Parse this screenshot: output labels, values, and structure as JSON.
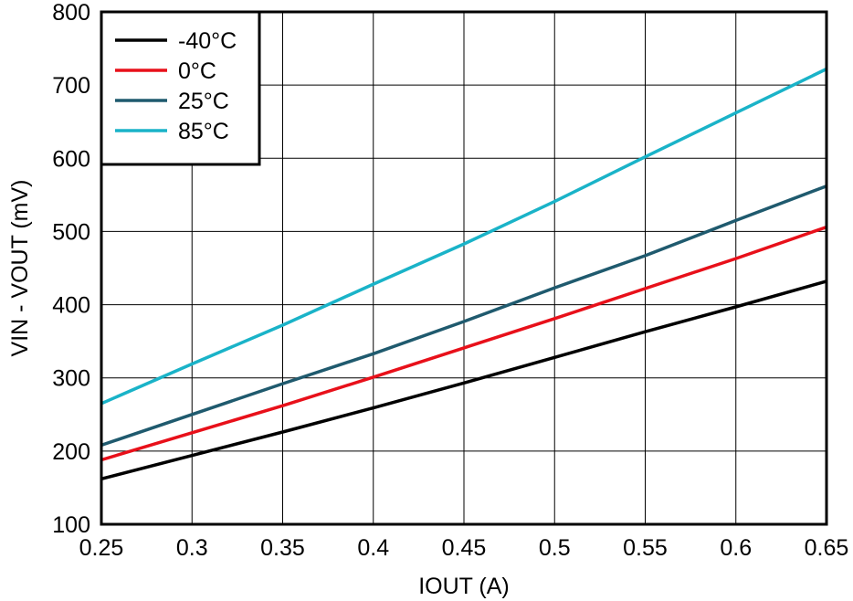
{
  "chart_data": {
    "type": "line",
    "title": "",
    "xlabel": "IOUT (A)",
    "ylabel": "VIN - VOUT (mV)",
    "xlim": [
      0.25,
      0.65
    ],
    "ylim": [
      100,
      800
    ],
    "xticks": [
      "0.25",
      "0.3",
      "0.35",
      "0.4",
      "0.45",
      "0.5",
      "0.55",
      "0.6",
      "0.65"
    ],
    "yticks": [
      "100",
      "200",
      "300",
      "400",
      "500",
      "600",
      "700",
      "800"
    ],
    "grid": true,
    "legend_position": "top-left",
    "series": [
      {
        "name": "-40°C",
        "color": "#000000",
        "x": [
          0.25,
          0.3,
          0.35,
          0.4,
          0.45,
          0.5,
          0.55,
          0.6,
          0.65
        ],
        "y": [
          162,
          194,
          226,
          259,
          293,
          328,
          363,
          397,
          432
        ]
      },
      {
        "name": "0°C",
        "color": "#e8101a",
        "x": [
          0.25,
          0.3,
          0.35,
          0.4,
          0.45,
          0.5,
          0.55,
          0.6,
          0.65
        ],
        "y": [
          188,
          225,
          262,
          301,
          341,
          381,
          422,
          463,
          506
        ]
      },
      {
        "name": "25°C",
        "color": "#1f5a6e",
        "x": [
          0.25,
          0.3,
          0.35,
          0.4,
          0.45,
          0.5,
          0.55,
          0.6,
          0.65
        ],
        "y": [
          208,
          250,
          292,
          333,
          377,
          423,
          467,
          515,
          562
        ]
      },
      {
        "name": "85°C",
        "color": "#1ab3c8",
        "x": [
          0.25,
          0.3,
          0.35,
          0.4,
          0.45,
          0.5,
          0.55,
          0.6,
          0.65
        ],
        "y": [
          265,
          319,
          372,
          428,
          483,
          541,
          602,
          662,
          722
        ]
      }
    ]
  }
}
